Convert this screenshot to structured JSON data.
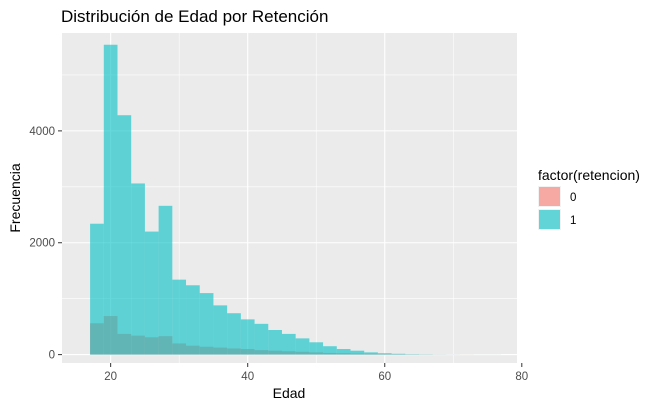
{
  "chart_data": {
    "type": "histogram",
    "title": "Distribución de Edad por Retención",
    "xlabel": "Edad",
    "ylabel": "Frecuencia",
    "xlim": [
      12.9,
      79.3
    ],
    "ylim": [
      -150,
      5750
    ],
    "x_ticks": [
      20,
      40,
      60,
      80
    ],
    "y_ticks": [
      0,
      2000,
      4000
    ],
    "grid": true,
    "legend": {
      "title": "factor(retencion)",
      "position": "right"
    },
    "bin_width": 2,
    "x": [
      18,
      20,
      22,
      24,
      26,
      28,
      30,
      32,
      34,
      36,
      38,
      40,
      42,
      44,
      46,
      48,
      50,
      52,
      54,
      56,
      58,
      60,
      62,
      64,
      66,
      68,
      70,
      72,
      74,
      76
    ],
    "series": [
      {
        "name": "0",
        "color": "#F8766D",
        "values": [
          560,
          690,
          370,
          340,
          310,
          330,
          200,
          160,
          140,
          125,
          110,
          100,
          80,
          70,
          60,
          50,
          40,
          30,
          25,
          20,
          15,
          10,
          8,
          5,
          4,
          3,
          2,
          2,
          1,
          1
        ]
      },
      {
        "name": "1",
        "color": "#00BFC4",
        "values": [
          2340,
          5540,
          4280,
          3060,
          2200,
          2660,
          1340,
          1240,
          1100,
          880,
          740,
          630,
          550,
          440,
          370,
          290,
          220,
          150,
          100,
          70,
          40,
          25,
          15,
          8,
          5,
          3,
          2,
          1,
          1,
          1
        ]
      }
    ]
  }
}
